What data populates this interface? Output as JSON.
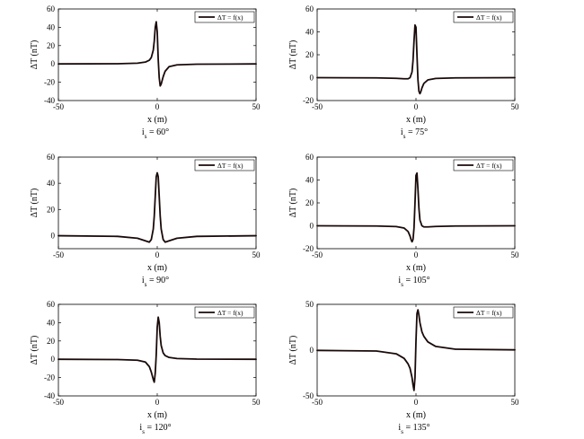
{
  "chart_data": [
    {
      "type": "line",
      "xlabel": "x (m)",
      "ylabel": "ΔT (nT)",
      "caption_main": "i",
      "caption_sub": "s",
      "caption_value": " = 60°",
      "xlim": [
        -50,
        50
      ],
      "ylim": [
        -40,
        60
      ],
      "xticks": [
        -50,
        0,
        50
      ],
      "yticks": [
        -40,
        -20,
        0,
        20,
        40,
        60
      ],
      "legend": "top-right",
      "grid": false,
      "series": [
        {
          "name": "ΔT = f(x)",
          "color": "#1a0a0a",
          "x": [
            -50,
            -20,
            -10,
            -6,
            -4,
            -3,
            -2,
            -1.5,
            -1,
            -0.5,
            0,
            0.5,
            1,
            1.5,
            2,
            2.5,
            3,
            4,
            6,
            10,
            20,
            50
          ],
          "y": [
            0,
            0.2,
            0.8,
            2,
            4,
            7,
            15,
            25,
            40,
            46,
            35,
            5,
            -15,
            -24,
            -22,
            -18,
            -14,
            -8,
            -3,
            -1,
            -0.3,
            0
          ]
        }
      ]
    },
    {
      "type": "line",
      "xlabel": "x (m)",
      "ylabel": "ΔT (nT)",
      "caption_main": "i",
      "caption_sub": "s",
      "caption_value": " = 75°",
      "xlim": [
        -50,
        50
      ],
      "ylim": [
        -20,
        60
      ],
      "xticks": [
        -50,
        0,
        50
      ],
      "yticks": [
        -20,
        0,
        20,
        40,
        60
      ],
      "legend": "top-right",
      "grid": false,
      "series": [
        {
          "name": "ΔT = f(x)",
          "color": "#1a0a0a",
          "x": [
            -50,
            -20,
            -10,
            -6,
            -4,
            -3,
            -2,
            -1.5,
            -1,
            -0.5,
            0,
            0.5,
            1,
            1.5,
            2,
            2.5,
            3,
            4,
            6,
            10,
            20,
            50
          ],
          "y": [
            0,
            -0.2,
            -0.6,
            -1,
            -1,
            0,
            5,
            15,
            32,
            46,
            44,
            20,
            -2,
            -12,
            -14,
            -12,
            -9,
            -5,
            -2,
            -0.7,
            -0.2,
            0
          ]
        }
      ]
    },
    {
      "type": "line",
      "xlabel": "x (m)",
      "ylabel": "ΔT (nT)",
      "caption_main": "i",
      "caption_sub": "s",
      "caption_value": " = 90°",
      "xlim": [
        -50,
        50
      ],
      "ylim": [
        -10,
        60
      ],
      "xticks": [
        -50,
        0,
        50
      ],
      "yticks": [
        0,
        20,
        40,
        60
      ],
      "legend": "top-right",
      "grid": false,
      "series": [
        {
          "name": "ΔT = f(x)",
          "color": "#1a0a0a",
          "x": [
            -50,
            -20,
            -10,
            -6,
            -4,
            -3,
            -2,
            -1.5,
            -1,
            -0.5,
            0,
            0.5,
            1,
            1.5,
            2,
            3,
            4,
            6,
            10,
            20,
            50
          ],
          "y": [
            -0.1,
            -0.6,
            -2,
            -4,
            -5,
            -3,
            5,
            15,
            30,
            45,
            48,
            45,
            30,
            15,
            5,
            -3,
            -5,
            -4,
            -2,
            -0.6,
            -0.1
          ]
        }
      ]
    },
    {
      "type": "line",
      "xlabel": "x (m)",
      "ylabel": "ΔT (nT)",
      "caption_main": "i",
      "caption_sub": "s",
      "caption_value": " = 105°",
      "xlim": [
        -50,
        50
      ],
      "ylim": [
        -20,
        60
      ],
      "xticks": [
        -50,
        0,
        50
      ],
      "yticks": [
        -20,
        0,
        20,
        40,
        60
      ],
      "legend": "top-right",
      "grid": false,
      "series": [
        {
          "name": "ΔT = f(x)",
          "color": "#1a0a0a",
          "x": [
            -50,
            -20,
            -10,
            -6,
            -4,
            -3,
            -2.5,
            -2,
            -1.5,
            -1,
            -0.5,
            0,
            0.5,
            1,
            1.5,
            2,
            3,
            4,
            6,
            10,
            20,
            50
          ],
          "y": [
            0,
            -0.2,
            -0.7,
            -2,
            -5,
            -9,
            -12,
            -14,
            -12,
            -2,
            20,
            44,
            46,
            32,
            15,
            5,
            0,
            -1,
            -1,
            -0.6,
            -0.2,
            0
          ]
        }
      ]
    },
    {
      "type": "line",
      "xlabel": "x (m)",
      "ylabel": "ΔT (nT)",
      "caption_main": "i",
      "caption_sub": "s",
      "caption_value": " = 120°",
      "xlim": [
        -50,
        50
      ],
      "ylim": [
        -40,
        60
      ],
      "xticks": [
        -50,
        0,
        50
      ],
      "yticks": [
        -40,
        -20,
        0,
        20,
        40,
        60
      ],
      "legend": "top-right",
      "grid": false,
      "series": [
        {
          "name": "ΔT = f(x)",
          "color": "#1a0a0a",
          "x": [
            -50,
            -20,
            -10,
            -6,
            -4,
            -3,
            -2.5,
            -2,
            -1.5,
            -1,
            -0.5,
            0,
            0.5,
            1,
            1.5,
            2,
            3,
            4,
            6,
            10,
            20,
            50
          ],
          "y": [
            0,
            -0.3,
            -1,
            -3,
            -8,
            -14,
            -18,
            -22,
            -25,
            -15,
            5,
            35,
            46,
            40,
            25,
            15,
            7,
            4,
            2,
            0.8,
            0.2,
            0
          ]
        }
      ]
    },
    {
      "type": "line",
      "xlabel": "x (m)",
      "ylabel": "ΔT (nT)",
      "caption_main": "i",
      "caption_sub": "s",
      "caption_value": " = 135°",
      "xlim": [
        -50,
        50
      ],
      "ylim": [
        -50,
        50
      ],
      "xticks": [
        -50,
        0,
        50
      ],
      "yticks": [
        -50,
        0,
        50
      ],
      "legend": "top-right",
      "grid": false,
      "series": [
        {
          "name": "ΔT = f(x)",
          "color": "#1a0a0a",
          "x": [
            -50,
            -20,
            -10,
            -6,
            -4,
            -3,
            -2,
            -1.5,
            -1,
            -0.5,
            0,
            0.5,
            1,
            1.5,
            2,
            3,
            4,
            6,
            10,
            20,
            50
          ],
          "y": [
            -0.3,
            -1,
            -4,
            -9,
            -15,
            -20,
            -30,
            -38,
            -44,
            -30,
            10,
            40,
            44,
            38,
            30,
            20,
            15,
            9,
            4,
            1,
            0.3
          ]
        }
      ]
    }
  ]
}
